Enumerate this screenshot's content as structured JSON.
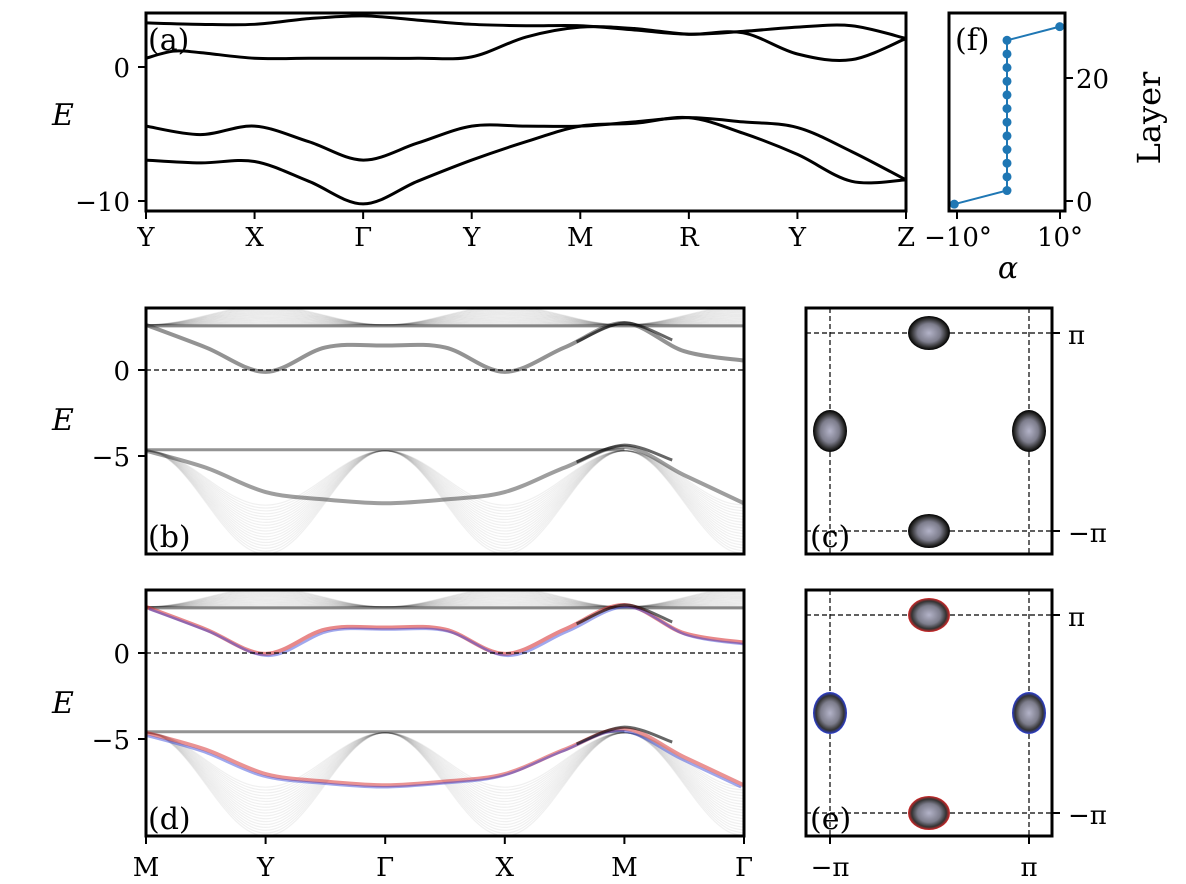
{
  "figure": {
    "panels": {
      "a": {
        "label": "(a)",
        "ylabel": "E",
        "xticks": [
          "Y",
          "X",
          "Γ",
          "Y",
          "M",
          "R",
          "Y",
          "Z"
        ],
        "yticks": [
          "0",
          "−10"
        ]
      },
      "b": {
        "label": "(b)",
        "ylabel": "E",
        "yticks": [
          "0",
          "−5"
        ]
      },
      "c": {
        "label": "(c)",
        "yticks": [
          "π",
          "−π"
        ]
      },
      "d": {
        "label": "(d)",
        "ylabel": "E",
        "xticks": [
          "M",
          "Y",
          "Γ",
          "X",
          "M",
          "Γ"
        ],
        "yticks": [
          "0",
          "−5"
        ]
      },
      "e": {
        "label": "(e)",
        "yticks": [
          "π",
          "−π"
        ],
        "xticks": [
          "−π",
          "π"
        ]
      },
      "f": {
        "label": "(f)",
        "xlabel": "α",
        "ylabel": "Layer",
        "xticks": [
          "−10°",
          "10°"
        ],
        "yticks": [
          "20",
          "0"
        ]
      }
    }
  },
  "chart_data": [
    {
      "panel": "a",
      "type": "line",
      "ylabel": "E",
      "xlim": [
        0,
        7
      ],
      "ylim": [
        -10.5,
        3.5
      ],
      "x_tick_positions": [
        0,
        1,
        2,
        3,
        4,
        5,
        6,
        7
      ],
      "x_tick_labels": [
        "Y",
        "X",
        "Γ",
        "Y",
        "M",
        "R",
        "Y",
        "Z"
      ],
      "series": [
        {
          "x": [
            0,
            0.5,
            1,
            1.5,
            2,
            2.5,
            3,
            3.5,
            4,
            4.5,
            5,
            5.5,
            6,
            6.5,
            7
          ],
          "values": [
            2.8,
            2.7,
            2.7,
            3.1,
            3.3,
            3.0,
            2.7,
            2.6,
            2.6,
            2.3,
            2.0,
            2.2,
            2.5,
            2.6,
            1.7
          ]
        },
        {
          "x": [
            0,
            0.25,
            0.5,
            1,
            1.5,
            2,
            2.5,
            3,
            3.5,
            4,
            4.5,
            5,
            5.5,
            6,
            6.5,
            7
          ],
          "values": [
            0.3,
            0.8,
            0.7,
            0.3,
            0.3,
            0.3,
            0.3,
            0.4,
            1.8,
            2.5,
            2.4,
            2.0,
            2.1,
            0.6,
            0.2,
            1.7
          ]
        },
        {
          "x": [
            0,
            0.5,
            1,
            1.5,
            2,
            2.5,
            3,
            3.5,
            4,
            4.5,
            5,
            5.5,
            6,
            6.5,
            7
          ],
          "values": [
            -4.5,
            -5.1,
            -4.5,
            -5.6,
            -6.9,
            -5.7,
            -4.5,
            -4.5,
            -4.5,
            -4.2,
            -3.9,
            -4.2,
            -4.6,
            -6.3,
            -8.3
          ]
        },
        {
          "x": [
            0,
            0.5,
            1,
            1.5,
            2,
            2.5,
            3,
            3.5,
            4,
            4.5,
            5,
            5.5,
            6,
            6.5,
            7
          ],
          "values": [
            -6.9,
            -7.1,
            -7.0,
            -8.4,
            -10.0,
            -8.4,
            -6.9,
            -5.6,
            -4.5,
            -4.3,
            -3.9,
            -5.0,
            -6.5,
            -8.4,
            -8.3
          ]
        }
      ]
    },
    {
      "panel": "f",
      "type": "line",
      "xlabel": "α",
      "ylabel": "Layer",
      "xlim": [
        -11,
        11
      ],
      "ylim": [
        -1,
        28
      ],
      "points": [
        {
          "x": -10,
          "y": 0
        },
        {
          "x": 0,
          "y": 2
        },
        {
          "x": 0,
          "y": 4
        },
        {
          "x": 0,
          "y": 6
        },
        {
          "x": 0,
          "y": 8
        },
        {
          "x": 0,
          "y": 10
        },
        {
          "x": 0,
          "y": 12
        },
        {
          "x": 0,
          "y": 14
        },
        {
          "x": 0,
          "y": 16
        },
        {
          "x": 0,
          "y": 18
        },
        {
          "x": 0,
          "y": 20
        },
        {
          "x": 0,
          "y": 22
        },
        {
          "x": 0,
          "y": 24
        },
        {
          "x": 10,
          "y": 26
        }
      ],
      "color": "#1f77b4"
    },
    {
      "panel": "b",
      "type": "heatmap",
      "ylabel": "E",
      "ylim": [
        -9.8,
        3.3
      ],
      "note_colors": [
        "#000000",
        "#8a8a8a"
      ],
      "reference_line_y": 0,
      "band_centers": [
        {
          "x": [
            0,
            1,
            2,
            3,
            4,
            5
          ],
          "values": [
            2.4,
            2.4,
            2.4,
            2.4,
            2.4,
            2.4
          ]
        },
        {
          "x": [
            0,
            1,
            2,
            3,
            4,
            5
          ],
          "values": [
            2.4,
            0,
            1.3,
            0,
            2.4,
            0.5
          ]
        },
        {
          "x": [
            0,
            1,
            2,
            3,
            4,
            5
          ],
          "values": [
            -4.3,
            -4.3,
            -4.3,
            -4.3,
            -4.3,
            -4.3
          ]
        },
        {
          "x": [
            0,
            1,
            2,
            3,
            4,
            5
          ],
          "values": [
            -4.3,
            -6.5,
            -7.2,
            -6.5,
            -4.3,
            -7.2
          ]
        }
      ]
    },
    {
      "panel": "d",
      "type": "heatmap",
      "ylabel": "E",
      "ylim": [
        -9.8,
        3.3
      ],
      "x_tick_labels": [
        "M",
        "Y",
        "Γ",
        "X",
        "M",
        "Γ"
      ],
      "colors": [
        "#000000",
        "#d62728",
        "#2c3fd6"
      ],
      "reference_line_y": 0
    },
    {
      "panel": "c",
      "type": "heatmap",
      "pockets": [
        "top",
        "left",
        "right",
        "bottom"
      ]
    },
    {
      "panel": "e",
      "type": "heatmap",
      "pockets": [
        {
          "pos": "top",
          "rim_color": "#d62728"
        },
        {
          "pos": "left",
          "rim_color": "#2c3fd6"
        },
        {
          "pos": "right",
          "rim_color": "#2c3fd6"
        },
        {
          "pos": "bottom",
          "rim_color": "#d62728"
        }
      ],
      "x_tick_labels": [
        "−π",
        "π"
      ]
    }
  ]
}
